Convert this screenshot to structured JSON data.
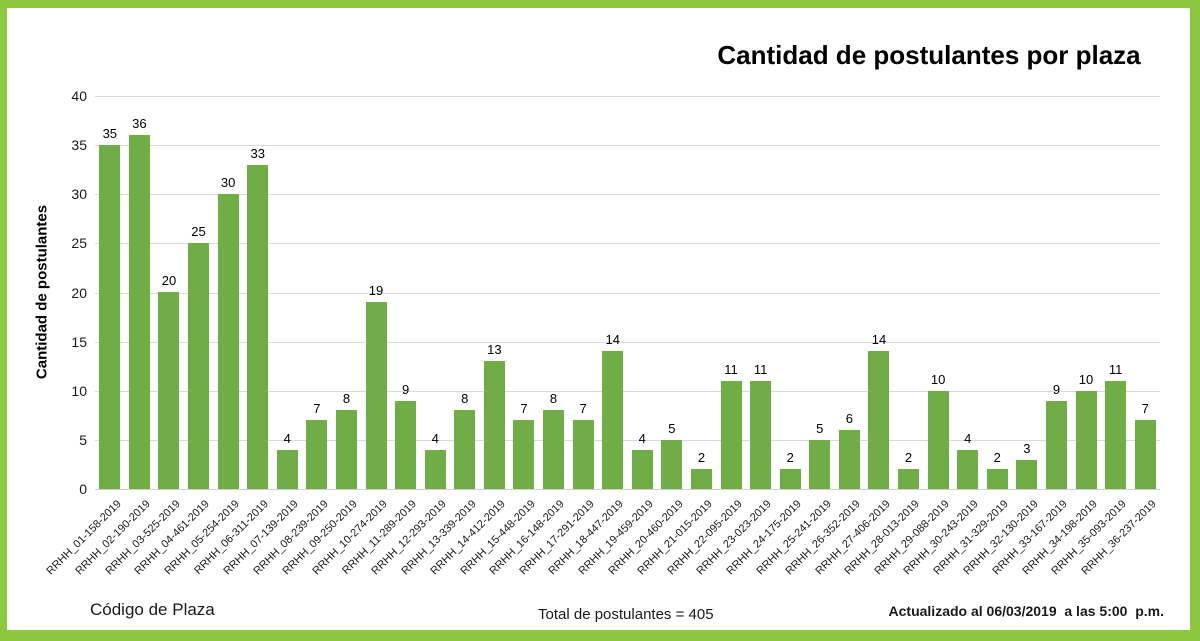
{
  "title": "Cantidad de postulantes por plaza",
  "footer": {
    "x_axis_title": "Código de Plaza",
    "total_label": "Total de postulantes = 405",
    "updated_label": "Actualizado al 06/03/2019  a las 5:00  p.m."
  },
  "colors": {
    "bar": "#70AD47",
    "frame_border": "#8DC63F",
    "gridline": "#D9D9D9",
    "axis_line": "#CFCFCF"
  },
  "chart_data": {
    "type": "bar",
    "title": "Cantidad de postulantes por plaza",
    "xlabel": "Código de Plaza",
    "ylabel": "Cantidad de postulantes",
    "ylim": [
      0,
      40
    ],
    "ytick_step": 5,
    "grid": true,
    "legend": false,
    "bar_color": "#70AD47",
    "categories": [
      "RRHH_01-158-2019",
      "RRHH_02-190-2019",
      "RRHH_03-525-2019",
      "RRHH_04-461-2019",
      "RRHH_05-254-2019",
      "RRHH_06-311-2019",
      "RRHH_07-139-2019",
      "RRHH_08-239-2019",
      "RRHH_09-250-2019",
      "RRHH_10-274-2019",
      "RRHH_11-289-2019",
      "RRHH_12-293-2019",
      "RRHH_13-339-2019",
      "RRHH_14-412-2019",
      "RRHH_15-448-2019",
      "RRHH_16-148-2019",
      "RRHH_17-291-2019",
      "RRHH_18-447-2019",
      "RRHH_19-459-2019",
      "RRHH_20-460-2019",
      "RRHH_21-015-2019",
      "RRHH_22-095-2019",
      "RRHH_23-023-2019",
      "RRHH_24-175-2019",
      "RRHH_25-241-2019",
      "RRHH_26-352-2019",
      "RRHH_27-406-2019",
      "RRHH_28-013-2019",
      "RRHH_29-088-2019",
      "RRHH_30-243-2019",
      "RRHH_31-329-2019",
      "RRHH_32-130-2019",
      "RRHH_33-167-2019",
      "RRHH_34-198-2019",
      "RRHH_35-093-2019",
      "RRHH_36-237-2019"
    ],
    "values": [
      35,
      36,
      20,
      25,
      30,
      33,
      4,
      7,
      8,
      19,
      9,
      4,
      8,
      13,
      7,
      8,
      7,
      14,
      4,
      5,
      2,
      11,
      11,
      2,
      5,
      6,
      14,
      2,
      10,
      4,
      2,
      3,
      9,
      10,
      11,
      7
    ],
    "total": 405
  }
}
